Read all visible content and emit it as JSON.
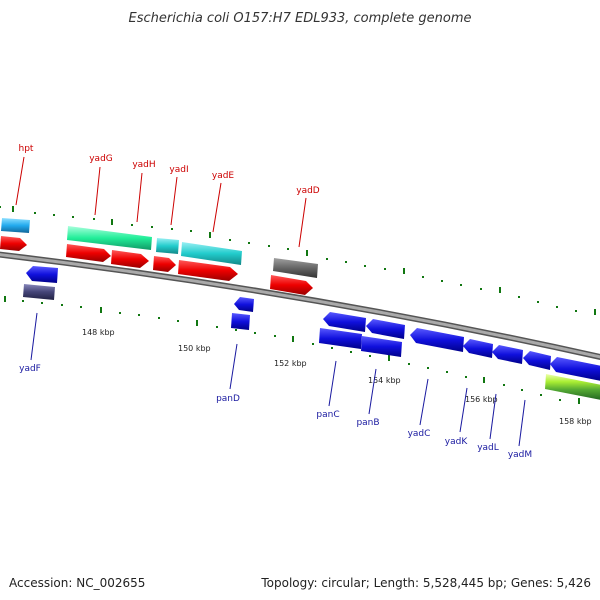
{
  "header": {
    "title": "Escherichia coli O157:H7 EDL933, complete genome"
  },
  "footer": {
    "accession": "Accession: NC_002655",
    "summary": "Topology: circular; Length: 5,528,445 bp; Genes: 5,426"
  },
  "colors": {
    "forward_cds": "#ee0000",
    "reverse_cds": "#1010dd",
    "rna": "#22cccc",
    "teal_feature": "#22ee99",
    "gray_feature": "#666666",
    "dark_feature": "#444477",
    "label_top": "#cc0000",
    "label_bottom": "#1a1aa0",
    "backbone": "#888888",
    "tick": "#117711"
  },
  "scale_labels": [
    "148 kbp",
    "150 kbp",
    "152 kbp",
    "154 kbp",
    "156 kbp",
    "158 kbp"
  ],
  "gene_labels_top": [
    "hpt",
    "yadG",
    "yadH",
    "yadI",
    "yadE",
    "yadD"
  ],
  "gene_labels_bottom": [
    "yadF",
    "panD",
    "panC",
    "panB",
    "yadC",
    "yadK",
    "yadL",
    "yadM"
  ]
}
